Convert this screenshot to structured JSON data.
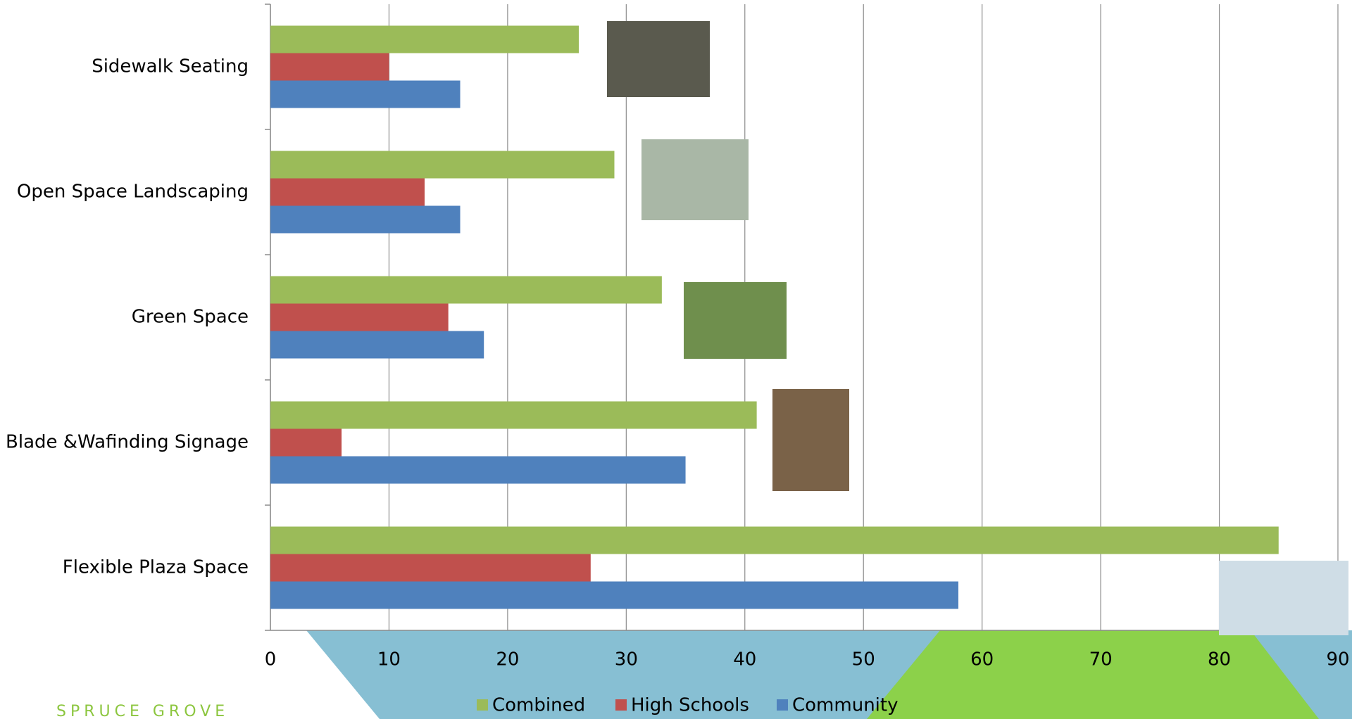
{
  "chart_data": {
    "type": "bar",
    "orientation": "horizontal",
    "categories": [
      "Sidewalk Seating",
      "Open Space Landscaping",
      "Green Space",
      "Blade &Wafinding Signage",
      "Flexible Plaza Space"
    ],
    "series": [
      {
        "name": "Combined",
        "color": "#9bbb59",
        "values": [
          26,
          29,
          33,
          41,
          85
        ]
      },
      {
        "name": "High Schools",
        "color": "#c0504d",
        "values": [
          10,
          13,
          15,
          6,
          27
        ]
      },
      {
        "name": "Community",
        "color": "#4f81bd",
        "values": [
          16,
          16,
          18,
          35,
          58
        ]
      }
    ],
    "xlim": [
      0,
      90
    ],
    "xticks": [
      0,
      10,
      20,
      30,
      40,
      50,
      60,
      70,
      80,
      90
    ],
    "grid": true
  },
  "footer": {
    "brand": "SPRUCE GROVE"
  }
}
